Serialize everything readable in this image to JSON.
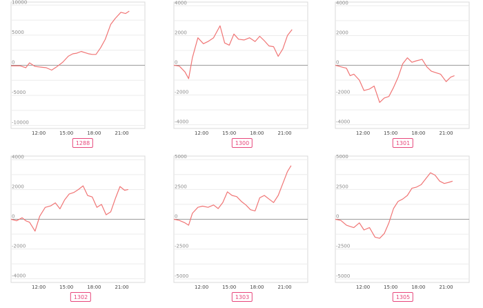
{
  "colors": {
    "line": "#f07474",
    "accent": "#e7457a"
  },
  "chart_data": [
    {
      "type": "line",
      "title": "1288",
      "xlim": [
        9,
        23.5
      ],
      "xticks": [
        12,
        15,
        18,
        21
      ],
      "xtick_labels": [
        "12:00",
        "15:00",
        "18:00",
        "21:00"
      ],
      "ylim": [
        -10500,
        10500
      ],
      "yticks": [
        10000,
        5000,
        0,
        -5000,
        -10000
      ],
      "ytick_labels": [
        "10000",
        "5000",
        "0",
        "-5000",
        "-10000"
      ],
      "x": [
        9.0,
        10.0,
        10.6,
        11.0,
        11.6,
        12.2,
        12.8,
        13.4,
        14.0,
        14.6,
        15.2,
        15.7,
        16.1,
        16.6,
        17.0,
        17.4,
        17.8,
        18.2,
        18.7,
        19.2,
        19.8,
        20.3,
        20.9,
        21.4,
        21.8
      ],
      "values": [
        -100,
        -100,
        -400,
        400,
        -200,
        -300,
        -400,
        -800,
        -200,
        500,
        1500,
        1900,
        2000,
        2300,
        2100,
        1900,
        1800,
        1800,
        2900,
        4300,
        6800,
        7800,
        8800,
        8600,
        9000
      ]
    },
    {
      "type": "line",
      "title": "1300",
      "xlim": [
        9,
        23.5
      ],
      "xticks": [
        12,
        15,
        18,
        21
      ],
      "xtick_labels": [
        "12:00",
        "15:00",
        "18:00",
        "21:00"
      ],
      "ylim": [
        -4250,
        4250
      ],
      "yticks": [
        4000,
        2000,
        0,
        -2000,
        -4000
      ],
      "ytick_labels": [
        "4000",
        "2000",
        "0",
        "-2000",
        "-4000"
      ],
      "x": [
        9.0,
        9.6,
        10.2,
        10.6,
        11.0,
        11.6,
        12.2,
        12.7,
        13.3,
        14.0,
        14.5,
        15.0,
        15.5,
        16.0,
        16.6,
        17.2,
        17.8,
        18.3,
        18.8,
        19.3,
        19.8,
        20.3,
        20.8,
        21.3,
        21.8
      ],
      "values": [
        0,
        -60,
        -450,
        -900,
        500,
        1850,
        1450,
        1600,
        1850,
        2650,
        1500,
        1350,
        2100,
        1750,
        1700,
        1850,
        1600,
        1950,
        1650,
        1300,
        1250,
        600,
        1100,
        2000,
        2400
      ]
    },
    {
      "type": "line",
      "title": "1301",
      "xlim": [
        9,
        23.5
      ],
      "xticks": [
        12,
        15,
        18,
        21
      ],
      "xtick_labels": [
        "12:00",
        "15:00",
        "18:00",
        "21:00"
      ],
      "ylim": [
        -4250,
        4250
      ],
      "yticks": [
        4000,
        2000,
        0,
        -2000,
        -4000
      ],
      "ytick_labels": [
        "4000",
        "2000",
        "0",
        "-2000",
        "-4000"
      ],
      "x": [
        9.0,
        9.6,
        10.2,
        10.6,
        11.0,
        11.6,
        12.1,
        12.7,
        13.2,
        13.8,
        14.3,
        14.8,
        15.3,
        15.8,
        16.3,
        16.8,
        17.3,
        17.8,
        18.4,
        18.9,
        19.4,
        19.9,
        20.4,
        21.0,
        21.5,
        21.9
      ],
      "values": [
        0,
        -100,
        -200,
        -700,
        -600,
        -1000,
        -1700,
        -1600,
        -1400,
        -2500,
        -2200,
        -2100,
        -1500,
        -800,
        100,
        500,
        200,
        300,
        400,
        -100,
        -400,
        -500,
        -600,
        -1100,
        -800,
        -700
      ]
    },
    {
      "type": "line",
      "title": "1302",
      "xlim": [
        9,
        23.5
      ],
      "xticks": [
        12,
        15,
        18,
        21
      ],
      "xtick_labels": [
        "12:00",
        "15:00",
        "18:00",
        "21:00"
      ],
      "ylim": [
        -4250,
        4250
      ],
      "yticks": [
        4000,
        2000,
        0,
        -2000,
        -4000
      ],
      "ytick_labels": [
        "4000",
        "2000",
        "0",
        "-2000",
        "-4000"
      ],
      "x": [
        9.0,
        9.6,
        10.2,
        10.6,
        11.0,
        11.6,
        12.1,
        12.7,
        13.3,
        13.8,
        14.3,
        14.8,
        15.3,
        15.8,
        16.3,
        16.8,
        17.3,
        17.8,
        18.3,
        18.8,
        19.3,
        19.8,
        20.3,
        20.8,
        21.3,
        21.7
      ],
      "values": [
        0,
        -100,
        100,
        -100,
        -200,
        -800,
        200,
        800,
        900,
        1100,
        700,
        1300,
        1700,
        1800,
        2000,
        2250,
        1600,
        1500,
        800,
        1000,
        300,
        500,
        1400,
        2200,
        1950,
        2000
      ]
    },
    {
      "type": "line",
      "title": "1303",
      "xlim": [
        9,
        23.5
      ],
      "xticks": [
        12,
        15,
        18,
        21
      ],
      "xtick_labels": [
        "12:00",
        "15:00",
        "18:00",
        "21:00"
      ],
      "ylim": [
        -5300,
        5300
      ],
      "yticks": [
        5000,
        2500,
        0,
        -2500,
        -5000
      ],
      "ytick_labels": [
        "5000",
        "2500",
        "0",
        "-2500",
        "-5000"
      ],
      "x": [
        9.0,
        9.6,
        10.2,
        10.6,
        11.0,
        11.6,
        12.1,
        12.7,
        13.3,
        13.8,
        14.3,
        14.8,
        15.3,
        15.8,
        16.3,
        16.8,
        17.3,
        17.8,
        18.3,
        18.8,
        19.3,
        19.8,
        20.3,
        20.8,
        21.3,
        21.7
      ],
      "values": [
        0,
        -100,
        -300,
        -500,
        500,
        1000,
        1100,
        1000,
        1200,
        900,
        1400,
        2300,
        2000,
        1900,
        1500,
        1200,
        800,
        700,
        1800,
        2000,
        1700,
        1400,
        2000,
        3000,
        4000,
        4500
      ]
    },
    {
      "type": "line",
      "title": "1305",
      "xlim": [
        9,
        23.5
      ],
      "xticks": [
        12,
        15,
        18,
        21
      ],
      "xtick_labels": [
        "12:00",
        "15:00",
        "18:00",
        "21:00"
      ],
      "ylim": [
        -5300,
        5300
      ],
      "yticks": [
        5000,
        2500,
        0,
        -2500,
        -5000
      ],
      "ytick_labels": [
        "5000",
        "2500",
        "0",
        "-2500",
        "-5000"
      ],
      "x": [
        9.0,
        9.6,
        10.2,
        10.6,
        11.0,
        11.6,
        12.1,
        12.7,
        13.3,
        13.8,
        14.3,
        14.8,
        15.3,
        15.8,
        16.3,
        16.8,
        17.3,
        17.8,
        18.3,
        18.8,
        19.3,
        19.8,
        20.3,
        20.8,
        21.3,
        21.7
      ],
      "values": [
        0,
        -100,
        -500,
        -600,
        -700,
        -300,
        -900,
        -700,
        -1500,
        -1600,
        -1200,
        -300,
        900,
        1500,
        1700,
        2000,
        2600,
        2700,
        2900,
        3400,
        3900,
        3700,
        3200,
        3000,
        3100,
        3200
      ]
    }
  ]
}
